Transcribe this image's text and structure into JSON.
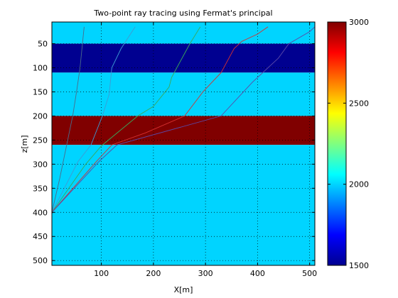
{
  "chart_data": {
    "type": "heatmap",
    "title": "Two-point ray tracing using Fermat's principal",
    "xlabel": "X[m]",
    "ylabel": "z[m]",
    "xlim": [
      5,
      510
    ],
    "ylim": [
      510,
      5
    ],
    "x_ticks": [
      100,
      200,
      300,
      400,
      500
    ],
    "y_ticks": [
      50,
      100,
      150,
      200,
      250,
      300,
      350,
      400,
      450,
      500
    ],
    "grid": true,
    "y_reversed": true,
    "layers": [
      {
        "z_top": 5,
        "z_bottom": 50,
        "velocity": 2000
      },
      {
        "z_top": 50,
        "z_bottom": 110,
        "velocity": 1500
      },
      {
        "z_top": 110,
        "z_bottom": 200,
        "velocity": 2000
      },
      {
        "z_top": 200,
        "z_bottom": 260,
        "velocity": 3000
      },
      {
        "z_top": 260,
        "z_bottom": 510,
        "velocity": 2000
      }
    ],
    "colorbar": {
      "range": [
        1500,
        3000
      ],
      "ticks": [
        1500,
        2000,
        2500,
        3000
      ],
      "colormap": "jet"
    },
    "source": {
      "x": 5,
      "z": 400
    },
    "series": [
      {
        "color": "#4a6b8a",
        "x": [
          5,
          20,
          45,
          53,
          59,
          67
        ],
        "z": [
          400,
          330,
          200,
          145,
          100,
          15
        ]
      },
      {
        "color": "#3d9bd4",
        "x": [
          5,
          55,
          80,
          102,
          115,
          120,
          138,
          165
        ],
        "z": [
          400,
          295,
          260,
          200,
          155,
          100,
          60,
          15
        ]
      },
      {
        "color": "#3aa85a",
        "x": [
          5,
          70,
          100,
          170,
          200,
          230,
          235,
          245,
          255,
          270,
          290
        ],
        "z": [
          400,
          300,
          262,
          200,
          180,
          140,
          120,
          100,
          80,
          50,
          15
        ]
      },
      {
        "color": "#d43030",
        "x": [
          5,
          90,
          120,
          185,
          260,
          295,
          330,
          355,
          370,
          400,
          420
        ],
        "z": [
          400,
          295,
          260,
          235,
          200,
          150,
          110,
          60,
          45,
          30,
          15
        ]
      },
      {
        "color": "#5a4aa8",
        "x": [
          5,
          95,
          130,
          330,
          390,
          420,
          440,
          460,
          500,
          510
        ],
        "z": [
          400,
          295,
          260,
          200,
          130,
          100,
          80,
          50,
          25,
          15
        ]
      }
    ]
  }
}
